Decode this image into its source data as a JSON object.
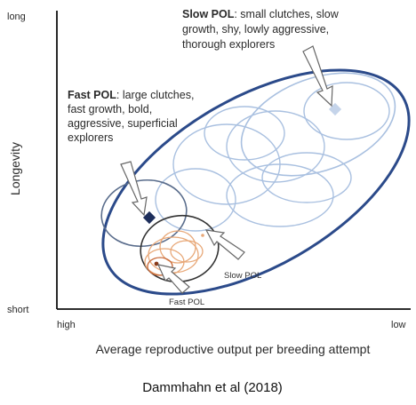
{
  "axes": {
    "y_title": "Longevity",
    "y_top": "long",
    "y_bottom": "short",
    "x_title": "Average reproductive output per breeding attempt",
    "x_left": "high",
    "x_right": "low"
  },
  "slow_pol": {
    "bold": "Slow POL",
    "lines": [
      ": small clutches, slow",
      "growth, shy, lowly aggressive,",
      "thorough explorers"
    ]
  },
  "fast_pol": {
    "bold": "Fast POL",
    "lines": [
      ": large clutches,",
      "fast growth, bold,",
      "aggressive, superficial",
      "explorers"
    ]
  },
  "inner_labels": {
    "slow": "Slow POL",
    "fast": "Fast POL"
  },
  "caption": "Dammhahn et al (2018)",
  "colors": {
    "outer_ellipse": "#2b4a8a",
    "slow_ellipses": "#a9c0e0",
    "fast_ellipses": "#e8a878",
    "slow_marker": "#c5d4ea",
    "fast_marker": "#1e2f5c"
  }
}
